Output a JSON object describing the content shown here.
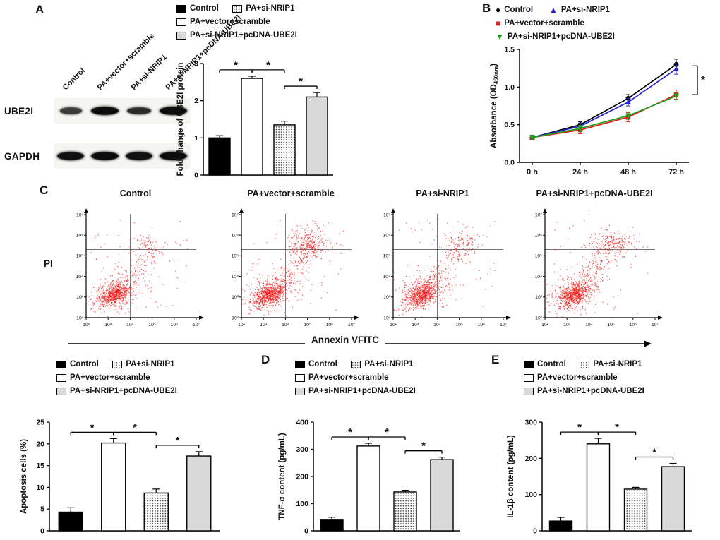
{
  "panel_labels": {
    "A": "A",
    "B": "B",
    "C": "C",
    "D": "D",
    "E": "E"
  },
  "groups": [
    "Control",
    "PA+vector+scramble",
    "PA+si-NRIP1",
    "PA+si-NRIP1+pcDNA-UBE2I"
  ],
  "group_styles": {
    "Control": {
      "type": "solid",
      "color": "#000000"
    },
    "PA+vector+scramble": {
      "type": "open",
      "color": "#ffffff"
    },
    "PA+si-NRIP1": {
      "type": "dots",
      "color": "#ffffff"
    },
    "PA+si-NRIP1+pcDNA-UBE2I": {
      "type": "solid-grey",
      "color": "#d9d9d9"
    }
  },
  "panelA": {
    "lane_labels": [
      "Control",
      "PA+vector+scramble",
      "PA+si-NRIP1",
      "PA+si-NRIP1+pcDNA-UBE2I"
    ],
    "targets": [
      "UBE2I",
      "GAPDH"
    ],
    "band_intensities": {
      "UBE2I": [
        0.55,
        1.0,
        0.7,
        1.0
      ],
      "GAPDH": [
        0.95,
        1.0,
        0.95,
        1.0
      ]
    }
  },
  "chart_data": [
    {
      "id": "ube2i-protein",
      "panel": "A",
      "type": "bar",
      "categories": [
        "Control",
        "PA+vector+scramble",
        "PA+si-NRIP1",
        "PA+si-NRIP1+pcDNA-UBE2I"
      ],
      "values": [
        1.0,
        2.6,
        1.35,
        2.1
      ],
      "errors": [
        0.06,
        0.06,
        0.1,
        0.12
      ],
      "ylabel": "Fold change of UBE2I protein",
      "ylim": [
        0,
        3
      ],
      "yticks": [
        0,
        1,
        2,
        3
      ],
      "ytick_labels": [
        "0",
        "1",
        "2",
        "3"
      ],
      "significance": [
        {
          "from": 0,
          "to": 1,
          "label": "*"
        },
        {
          "from": 1,
          "to": 2,
          "label": "*"
        },
        {
          "from": 2,
          "to": 3,
          "label": "*"
        }
      ]
    },
    {
      "id": "cck8-absorbance",
      "panel": "B",
      "type": "line",
      "x_categories": [
        "0 h",
        "24 h",
        "48 h",
        "72 h"
      ],
      "ylabel_main": "Absorbance (OD",
      "ylabel_sub": "450nm",
      "ylabel_end": ")",
      "ylim": [
        0,
        1.5
      ],
      "yticks": [
        0,
        0.5,
        1.0,
        1.5
      ],
      "ytick_labels": [
        "0.0",
        "0.5",
        "1.0",
        "1.5"
      ],
      "series": [
        {
          "name": "Control",
          "color": "#000000",
          "marker": "circle",
          "values": [
            0.33,
            0.5,
            0.85,
            1.3
          ],
          "errors": [
            0.03,
            0.04,
            0.05,
            0.07
          ]
        },
        {
          "name": "PA+si-NRIP1",
          "color": "#2525cc",
          "marker": "triangle-up",
          "values": [
            0.33,
            0.48,
            0.8,
            1.24
          ],
          "errors": [
            0.03,
            0.04,
            0.05,
            0.07
          ]
        },
        {
          "name": "PA+vector+scramble",
          "color": "#e81c1c",
          "marker": "square",
          "values": [
            0.33,
            0.43,
            0.6,
            0.9
          ],
          "errors": [
            0.03,
            0.05,
            0.06,
            0.06
          ]
        },
        {
          "name": "PA+si-NRIP1+pcDNA-UBE2I",
          "color": "#18a018",
          "marker": "triangle-down",
          "values": [
            0.33,
            0.45,
            0.62,
            0.88
          ],
          "errors": [
            0.03,
            0.04,
            0.05,
            0.05
          ]
        }
      ],
      "significance_label": "*"
    },
    {
      "id": "flow-cytometry",
      "panel": "C",
      "type": "scatter",
      "xlabel": "Annexin VFITC",
      "ylabel": "PI",
      "tick_labels": [
        "10²",
        "10³",
        "10⁴",
        "10⁵",
        "10⁶",
        "10⁷"
      ],
      "log_range": [
        2,
        7
      ],
      "quadrant_x": 4.0,
      "quadrant_y": 5.3,
      "point_color": "#f01818",
      "plots": [
        {
          "title": "Control",
          "late_apoptotic_fraction": 0.25
        },
        {
          "title": "PA+vector+scramble",
          "late_apoptotic_fraction": 1.0
        },
        {
          "title": "PA+si-NRIP1",
          "late_apoptotic_fraction": 0.45
        },
        {
          "title": "PA+si-NRIP1+pcDNA-UBE2I",
          "late_apoptotic_fraction": 0.8
        }
      ]
    },
    {
      "id": "apoptosis-cells",
      "panel": "C-quantification",
      "type": "bar",
      "categories": [
        "Control",
        "PA+vector+scramble",
        "PA+si-NRIP1",
        "PA+si-NRIP1+pcDNA-UBE2I"
      ],
      "values": [
        4.3,
        20.2,
        8.7,
        17.2
      ],
      "errors": [
        1.0,
        1.0,
        0.9,
        1.0
      ],
      "ylabel": "Apoptosis cells (%)",
      "ylim": [
        0,
        25
      ],
      "yticks": [
        0,
        5,
        10,
        15,
        20,
        25
      ],
      "ytick_labels": [
        "0",
        "5",
        "10",
        "15",
        "20",
        "25"
      ],
      "significance": [
        {
          "from": 0,
          "to": 1,
          "label": "*"
        },
        {
          "from": 1,
          "to": 2,
          "label": "*"
        },
        {
          "from": 2,
          "to": 3,
          "label": "*"
        }
      ]
    },
    {
      "id": "tnf-content",
      "panel": "D",
      "type": "bar",
      "categories": [
        "Control",
        "PA+vector+scramble",
        "PA+si-NRIP1",
        "PA+si-NRIP1+pcDNA-UBE2I"
      ],
      "values": [
        42,
        312,
        143,
        262
      ],
      "errors": [
        8,
        10,
        6,
        9
      ],
      "ylabel": "TNF-α content (pg/mL)",
      "ylim": [
        0,
        400
      ],
      "yticks": [
        0,
        100,
        200,
        300,
        400
      ],
      "ytick_labels": [
        "0",
        "100",
        "200",
        "300",
        "400"
      ],
      "significance": [
        {
          "from": 0,
          "to": 1,
          "label": "*"
        },
        {
          "from": 1,
          "to": 2,
          "label": "*"
        },
        {
          "from": 2,
          "to": 3,
          "label": "*"
        }
      ]
    },
    {
      "id": "il1b-content",
      "panel": "E",
      "type": "bar",
      "categories": [
        "Control",
        "PA+vector+scramble",
        "PA+si-NRIP1",
        "PA+si-NRIP1+pcDNA-UBE2I"
      ],
      "values": [
        27,
        240,
        115,
        177
      ],
      "errors": [
        10,
        15,
        5,
        9
      ],
      "ylabel": "IL-1β content (pg/mL)",
      "ylim": [
        0,
        300
      ],
      "yticks": [
        0,
        100,
        200,
        300
      ],
      "ytick_labels": [
        "0",
        "100",
        "200",
        "300"
      ],
      "significance": [
        {
          "from": 0,
          "to": 1,
          "label": "*"
        },
        {
          "from": 1,
          "to": 2,
          "label": "*"
        },
        {
          "from": 2,
          "to": 3,
          "label": "*"
        }
      ]
    }
  ]
}
